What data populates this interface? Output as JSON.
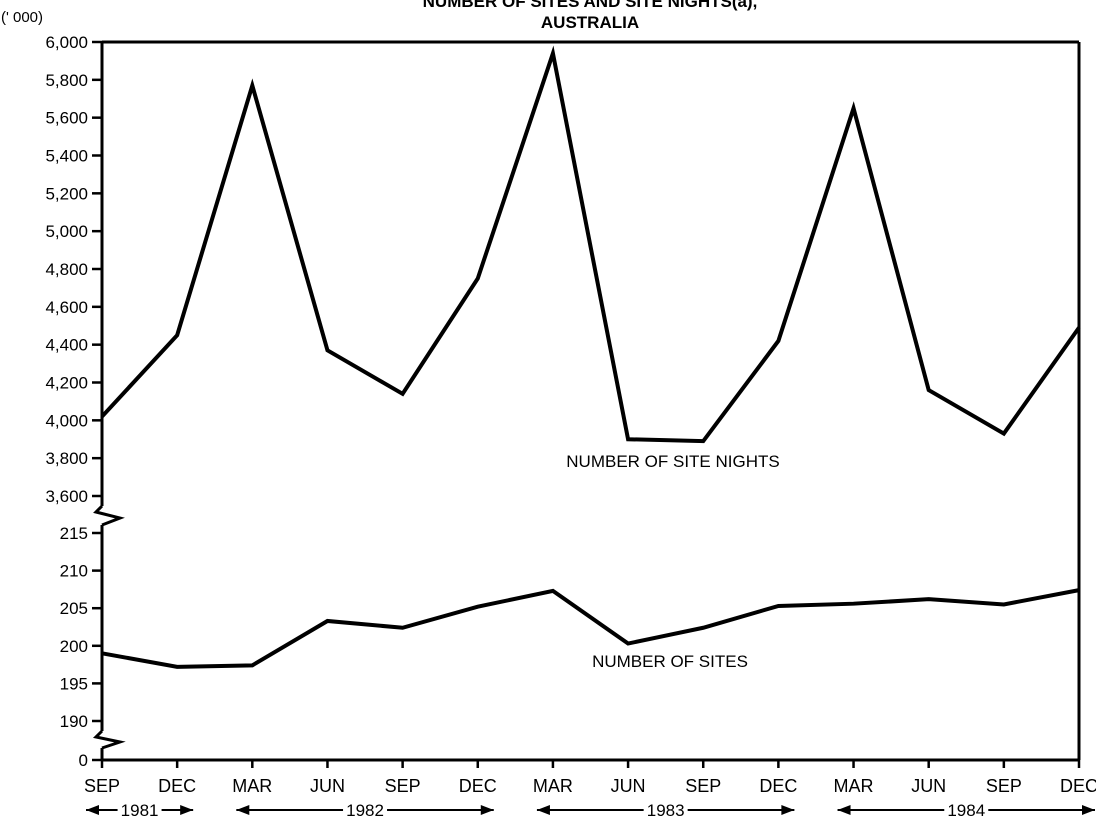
{
  "chart_data": {
    "type": "line",
    "title": "NUMBER OF SITES AND SITE NIGHTS(a),",
    "subtitle": "AUSTRALIA",
    "unit_label": "(' 000)",
    "categories": [
      "SEP",
      "DEC",
      "MAR",
      "JUN",
      "SEP",
      "DEC",
      "MAR",
      "JUN",
      "SEP",
      "DEC",
      "MAR",
      "JUN",
      "SEP",
      "DEC"
    ],
    "year_labels": [
      {
        "label": "1981",
        "from": 0,
        "to": 1
      },
      {
        "label": "1982",
        "from": 2,
        "to": 5
      },
      {
        "label": "1983",
        "from": 6,
        "to": 9
      },
      {
        "label": "1984",
        "from": 10,
        "to": 13
      }
    ],
    "series": [
      {
        "name": "NUMBER OF SITE NIGHTS",
        "values": [
          4020,
          4450,
          5770,
          4370,
          4140,
          4750,
          5940,
          3900,
          3890,
          4420,
          5650,
          4160,
          3930,
          4490
        ]
      },
      {
        "name": "NUMBER OF SITES",
        "values": [
          199.0,
          197.2,
          197.4,
          203.3,
          202.4,
          205.2,
          207.3,
          200.3,
          202.4,
          205.3,
          205.6,
          206.2,
          205.5,
          207.4
        ]
      }
    ],
    "upper_axis": {
      "ylim": [
        3600,
        6000
      ],
      "ticks": [
        "3,600",
        "3,800",
        "4,000",
        "4,200",
        "4,400",
        "4,600",
        "4,800",
        "5,000",
        "5,200",
        "5,400",
        "5,600",
        "5,800",
        "6,000"
      ]
    },
    "lower_axis": {
      "ylim": [
        190,
        215
      ],
      "ticks": [
        "190",
        "195",
        "200",
        "205",
        "210",
        "215"
      ]
    },
    "zero_tick": "0",
    "axis_break": true,
    "grid": false
  }
}
